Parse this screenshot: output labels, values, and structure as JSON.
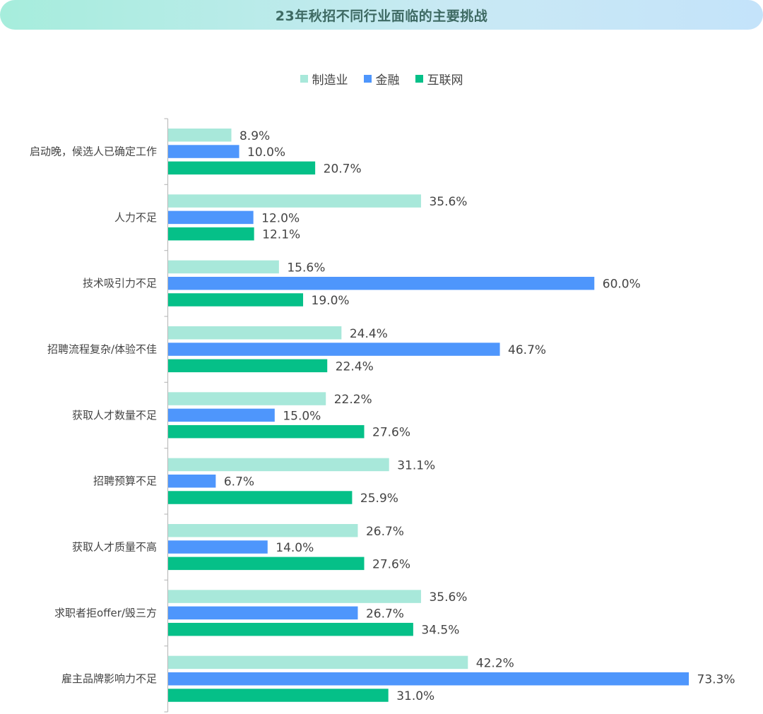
{
  "title": "23年秋招不同行业面临的主要挑战",
  "chart_data": {
    "type": "bar",
    "orientation": "horizontal",
    "title": "23年秋招不同行业面临的主要挑战",
    "categories": [
      "启动晚，候选人已确定工作",
      "人力不足",
      "技术吸引力不足",
      "招聘流程复杂/体验不佳",
      "获取人才数量不足",
      "招聘预算不足",
      "获取人才质量不高",
      "求职者拒offer/毁三方",
      "雇主品牌影响力不足"
    ],
    "series": [
      {
        "name": "制造业",
        "color": "#a8e8da",
        "values": [
          8.9,
          35.6,
          15.6,
          24.4,
          22.2,
          31.1,
          26.7,
          35.6,
          42.2
        ],
        "labels": [
          "8.9%",
          "35.6%",
          "15.6%",
          "24.4%",
          "22.2%",
          "31.1%",
          "26.7%",
          "35.6%",
          "42.2%"
        ]
      },
      {
        "name": "金融",
        "color": "#4e96fc",
        "values": [
          10.0,
          12.0,
          60.0,
          46.7,
          15.0,
          6.7,
          14.0,
          26.7,
          73.3
        ],
        "labels": [
          "10.0%",
          "12.0%",
          "60.0%",
          "46.7%",
          "15.0%",
          "6.7%",
          "14.0%",
          "26.7%",
          "73.3%"
        ]
      },
      {
        "name": "互联网",
        "color": "#05c088",
        "values": [
          20.7,
          12.1,
          19.0,
          22.4,
          27.6,
          25.9,
          27.6,
          34.5,
          31.0
        ],
        "labels": [
          "20.7%",
          "12.1%",
          "19.0%",
          "22.4%",
          "27.6%",
          "25.9%",
          "27.6%",
          "34.5%",
          "31.0%"
        ]
      }
    ],
    "xlim": [
      0,
      73.3
    ],
    "grid": false,
    "legend_position": "top-center"
  }
}
